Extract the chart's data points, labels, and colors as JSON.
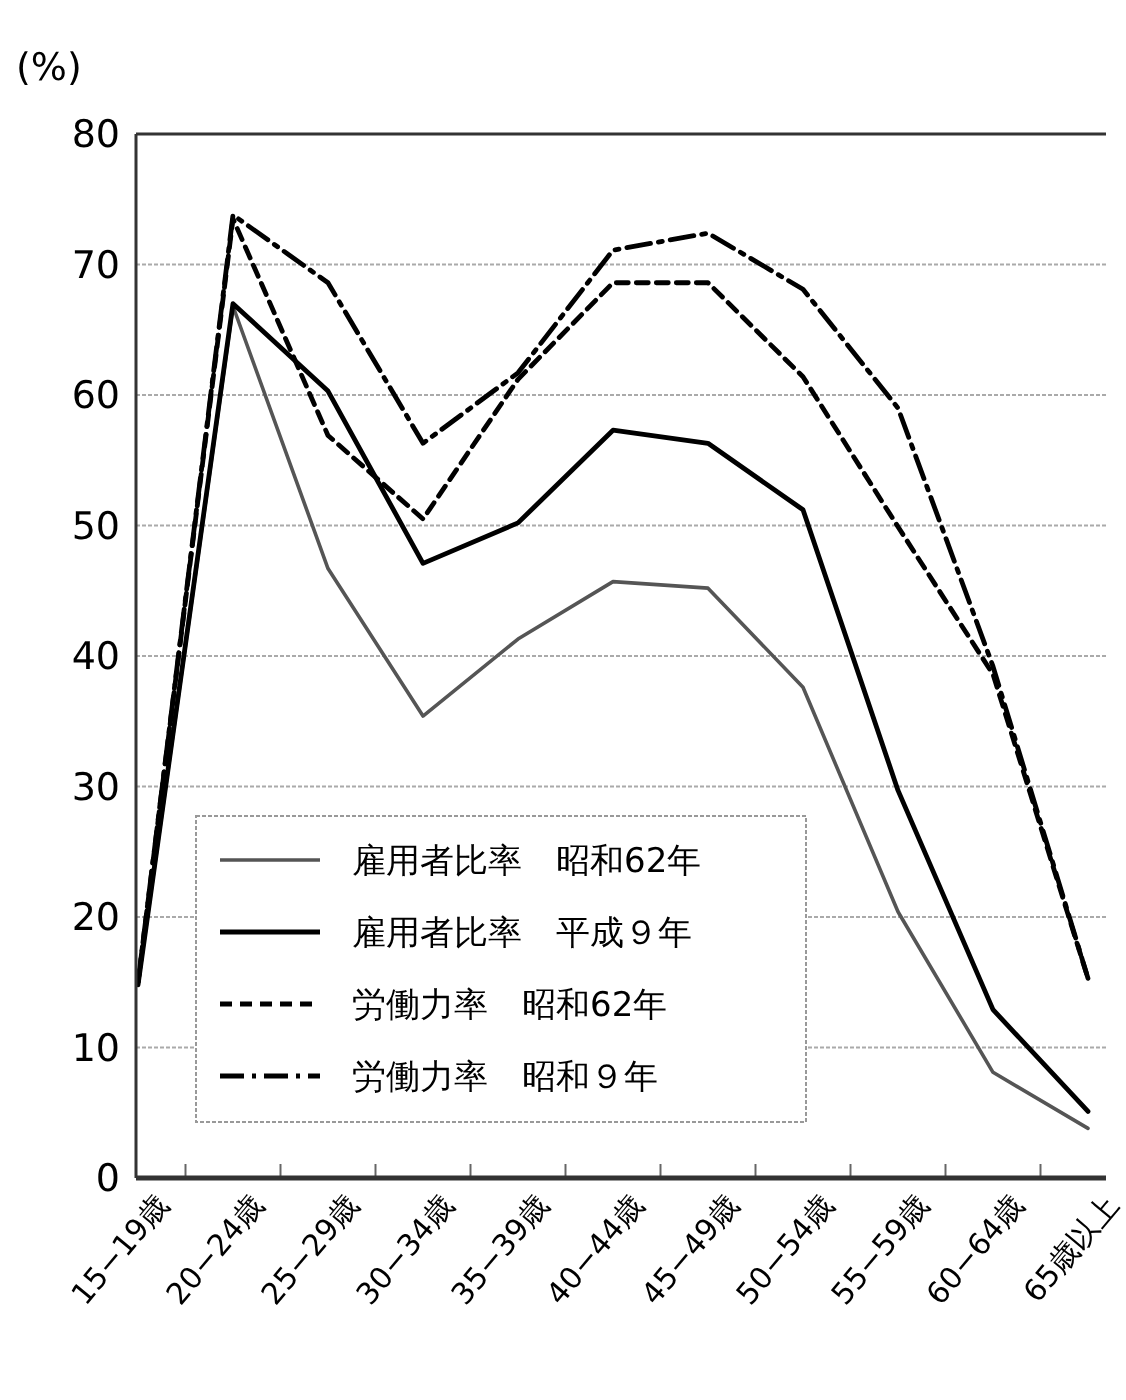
{
  "chart_data": {
    "type": "line",
    "ylabel": "(%)",
    "categories": [
      "15−19歳",
      "20−24歳",
      "25−29歳",
      "30−34歳",
      "35−39歳",
      "40−44歳",
      "45−49歳",
      "50−54歳",
      "55−59歳",
      "60−64歳",
      "65歳以上"
    ],
    "series": [
      {
        "name": "雇用者比率　昭和62年",
        "color": "#555555",
        "line_style": "solid",
        "values": [
          14.8,
          66.8,
          46.7,
          35.4,
          41.3,
          45.7,
          45.2,
          37.6,
          20.4,
          8.1,
          3.8
        ]
      },
      {
        "name": "雇用者比率　平成９年",
        "color": "#000000",
        "line_style": "solid",
        "values": [
          14.8,
          67,
          60.3,
          47.1,
          50.2,
          57.3,
          56.3,
          51.2,
          29.7,
          12.9,
          5.1
        ]
      },
      {
        "name": "労働力率　昭和62年",
        "color": "#000000",
        "line_style": "dashed",
        "values": [
          15,
          73.5,
          56.9,
          50.5,
          61.2,
          68.6,
          68.6,
          61.4,
          49.9,
          38.6,
          15.3
        ]
      },
      {
        "name": "労働力率　昭和９年",
        "color": "#000000",
        "line_style": "dashdot",
        "values": [
          15,
          73.8,
          68.6,
          56.3,
          61.7,
          71.1,
          72.4,
          68.1,
          59,
          39.2,
          15.3
        ]
      }
    ],
    "ylim": [
      0,
      80
    ],
    "yticks": [
      0,
      10,
      20,
      30,
      40,
      50,
      60,
      70,
      80
    ],
    "grid": "y",
    "legend": "bottom left",
    "marker": "none"
  }
}
